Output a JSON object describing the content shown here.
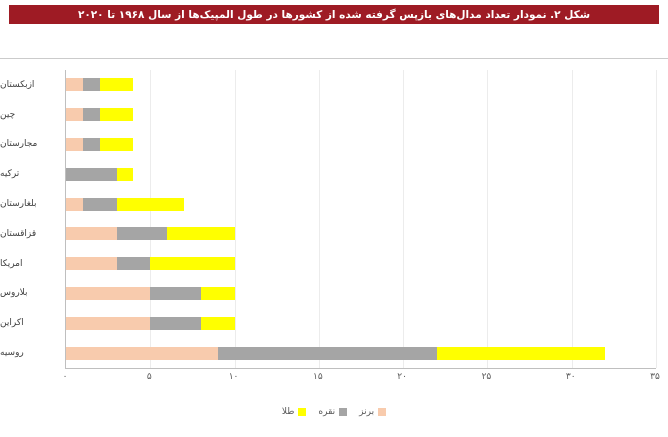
{
  "header": {
    "title": "شکل ۲. نمودار تعداد مدال‌های بازپس گرفته شده از کشورها در طول المپیک‌ها از سال ۱۹۶۸ تا ۲۰۲۰",
    "bar_color": "#9e1b24",
    "text_color": "#ffffff"
  },
  "chart_data": {
    "type": "bar",
    "stacked": true,
    "orientation": "horizontal",
    "title": "شکل ۲. نمودار تعداد مدال‌های بازپس گرفته شده از کشورها در طول المپیک‌ها از سال ۱۹۶۸ تا ۲۰۲۰",
    "categories": [
      "ازبکستان",
      "چین",
      "مجارستان",
      "ترکیه",
      "بلغارستان",
      "قزاقستان",
      "امریکا",
      "بلاروس",
      "اکراین",
      "روسیه"
    ],
    "series": [
      {
        "name": "برنز",
        "color": "#f8cbad",
        "values": [
          1,
          1,
          1,
          0,
          1,
          3,
          3,
          5,
          5,
          9
        ]
      },
      {
        "name": "نقره",
        "color": "#a5a5a5",
        "values": [
          1,
          1,
          1,
          3,
          2,
          3,
          2,
          3,
          3,
          13
        ]
      },
      {
        "name": "طلا",
        "color": "#ffff00",
        "values": [
          2,
          2,
          2,
          1,
          4,
          4,
          5,
          2,
          2,
          10
        ]
      }
    ],
    "totals": [
      4,
      4,
      4,
      4,
      7,
      10,
      10,
      10,
      10,
      32
    ],
    "x_ticks": [
      {
        "value": 0,
        "label": "۰"
      },
      {
        "value": 5,
        "label": "۵"
      },
      {
        "value": 10,
        "label": "۱۰"
      },
      {
        "value": 15,
        "label": "۱۵"
      },
      {
        "value": 20,
        "label": "۲۰"
      },
      {
        "value": 25,
        "label": "۲۵"
      },
      {
        "value": 30,
        "label": "۳۰"
      },
      {
        "value": 35,
        "label": "۳۵"
      }
    ],
    "xlim": [
      0,
      35
    ],
    "legend": [
      "طلا",
      "نقره",
      "برنز"
    ],
    "legend_position": "bottom",
    "grid": true,
    "axis_color": "#bfbfbf",
    "gridline_color": "#ececec"
  }
}
